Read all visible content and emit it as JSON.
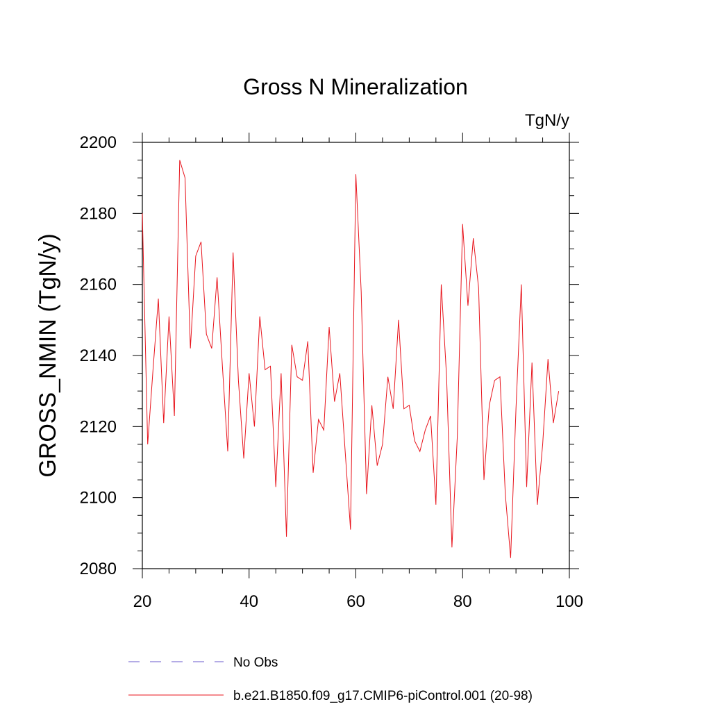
{
  "chart_data": {
    "type": "line",
    "title": "Gross N Mineralization",
    "units": "TgN/y",
    "ylabel": "GROSS_NMIN  (TgN/y)",
    "xlabel": "",
    "xlim": [
      20,
      100
    ],
    "ylim": [
      2080,
      2200
    ],
    "x_ticks": [
      20,
      40,
      60,
      80,
      100
    ],
    "y_ticks": [
      2080,
      2100,
      2120,
      2140,
      2160,
      2180,
      2200
    ],
    "grid": false,
    "legend_position": "bottom",
    "legend": [
      {
        "label": "No Obs",
        "style": "dashed",
        "color": "#6a5acd"
      },
      {
        "label": "b.e21.B1850.f09_g17.CMIP6-piControl.001 (20-98)",
        "style": "solid",
        "color": "#e8141c"
      }
    ],
    "series": [
      {
        "name": "b.e21.B1850.f09_g17.CMIP6-piControl.001 (20-98)",
        "color": "#e8141c",
        "x": [
          20,
          21,
          22,
          23,
          24,
          25,
          26,
          27,
          28,
          29,
          30,
          31,
          32,
          33,
          34,
          35,
          36,
          37,
          38,
          39,
          40,
          41,
          42,
          43,
          44,
          45,
          46,
          47,
          48,
          49,
          50,
          51,
          52,
          53,
          54,
          55,
          56,
          57,
          58,
          59,
          60,
          61,
          62,
          63,
          64,
          65,
          66,
          67,
          68,
          69,
          70,
          71,
          72,
          73,
          74,
          75,
          76,
          77,
          78,
          79,
          80,
          81,
          82,
          83,
          84,
          85,
          86,
          87,
          88,
          89,
          90,
          91,
          92,
          93,
          94,
          95,
          96,
          97,
          98
        ],
        "values": [
          2180,
          2115,
          2136,
          2156,
          2121,
          2151,
          2123,
          2195,
          2190,
          2142,
          2168,
          2172,
          2146,
          2142,
          2162,
          2137,
          2113,
          2169,
          2133,
          2111,
          2135,
          2120,
          2151,
          2136,
          2137,
          2103,
          2135,
          2089,
          2143,
          2134,
          2133,
          2144,
          2107,
          2122,
          2119,
          2148,
          2127,
          2135,
          2113,
          2091,
          2191,
          2158,
          2101,
          2126,
          2109,
          2115,
          2134,
          2125,
          2150,
          2125,
          2126,
          2116,
          2113,
          2119,
          2123,
          2098,
          2160,
          2134,
          2086,
          2117,
          2177,
          2154,
          2173,
          2159,
          2105,
          2126,
          2133,
          2134,
          2101,
          2083,
          2125,
          2160,
          2103,
          2138,
          2098,
          2115,
          2139,
          2121,
          2130
        ]
      }
    ]
  }
}
